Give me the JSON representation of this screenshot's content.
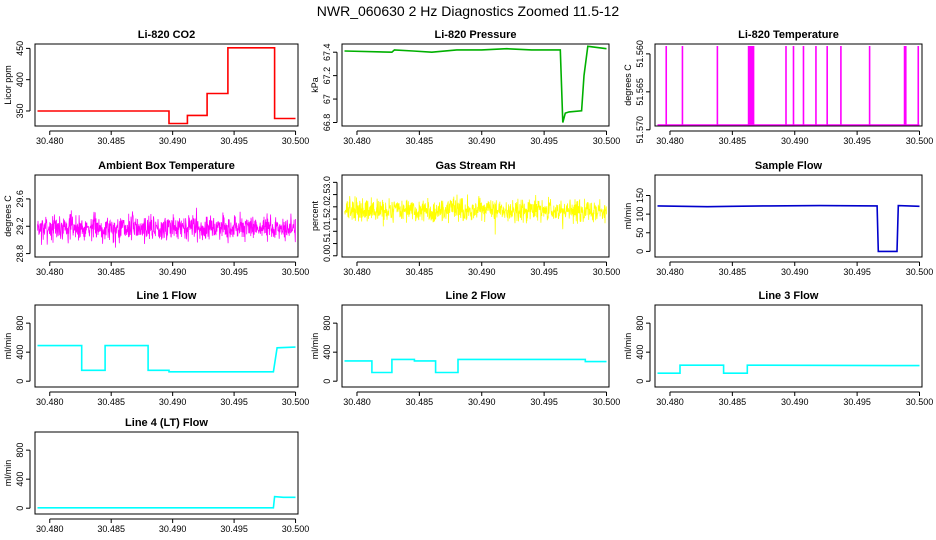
{
  "figure": {
    "title": "NWR_060630  2 Hz Diagnostics Zoomed 11.5-12"
  },
  "chart_data": [
    {
      "type": "line",
      "title": "Li-820 CO2",
      "ylabel": "Licor ppm",
      "color": "#ff0000",
      "xlim": [
        30.4788,
        30.5002
      ],
      "ylim": [
        326,
        457
      ],
      "yticks": [
        350,
        400,
        450
      ],
      "xticks": [
        "30.480",
        "30.485",
        "30.490",
        "30.495",
        "30.500"
      ],
      "series": [
        {
          "x": [
            30.479,
            30.4897,
            30.4897,
            30.4912,
            30.4912,
            30.4928,
            30.4928,
            30.4945,
            30.4945,
            30.4983,
            30.4983,
            30.5
          ],
          "y": [
            350,
            350,
            330,
            330,
            343,
            343,
            378,
            378,
            451,
            451,
            338,
            338
          ]
        }
      ]
    },
    {
      "type": "line",
      "title": "Li-820 Pressure",
      "ylabel": "kPa",
      "color": "#00b000",
      "xlim": [
        30.4788,
        30.5002
      ],
      "ylim": [
        66.77,
        67.47
      ],
      "yticks": [
        66.8,
        67.0,
        67.2,
        67.4
      ],
      "xticks": [
        "30.480",
        "30.485",
        "30.490",
        "30.495",
        "30.500"
      ],
      "series": [
        {
          "x": [
            30.479,
            30.4828,
            30.483,
            30.4845,
            30.486,
            30.488,
            30.49,
            30.492,
            30.494,
            30.4963,
            30.4965,
            30.4967,
            30.497,
            30.498,
            30.4982,
            30.4985,
            30.5
          ],
          "y": [
            67.41,
            67.4,
            67.42,
            67.41,
            67.4,
            67.42,
            67.42,
            67.43,
            67.42,
            67.42,
            66.8,
            66.88,
            66.89,
            66.9,
            67.2,
            67.45,
            67.43
          ]
        }
      ]
    },
    {
      "type": "line",
      "title": "Li-820 Temperature",
      "ylabel": "degrees C",
      "color": "#ff00ff",
      "xlim": [
        30.4788,
        30.5002
      ],
      "ylim": [
        51.5695,
        51.5587
      ],
      "yticks": [
        51.57,
        51.565,
        51.56
      ],
      "ytick_labels": [
        "51.570",
        "51.565",
        "51.560"
      ],
      "xticks": [
        "30.480",
        "30.485",
        "30.490",
        "30.495",
        "30.500"
      ],
      "baseline": 51.5695,
      "spikes": [
        30.4797,
        30.481,
        30.4838,
        30.4863,
        30.4864,
        30.4865,
        30.4866,
        30.4867,
        30.4893,
        30.4899,
        30.4907,
        30.4917,
        30.4926,
        30.4937,
        30.496,
        30.4988,
        30.4989,
        30.4999
      ]
    },
    {
      "type": "line",
      "title": "Ambient Box Temperature",
      "ylabel": "degrees C",
      "color": "#ff00ff",
      "xlim": [
        30.4788,
        30.5002
      ],
      "ylim": [
        28.75,
        29.95
      ],
      "yticks": [
        28.8,
        29.2,
        29.6
      ],
      "xticks": [
        "30.480",
        "30.485",
        "30.490",
        "30.495",
        "30.500"
      ],
      "noise": {
        "x0": 30.479,
        "x1": 30.5,
        "center": 29.18,
        "amp": 0.28,
        "n": 900,
        "seed": 7
      }
    },
    {
      "type": "line",
      "title": "Gas Stream RH",
      "ylabel": "percent",
      "color": "#ffff00",
      "xlim": [
        30.4788,
        30.5002
      ],
      "ylim": [
        -0.05,
        3.3
      ],
      "yticks": [
        0.0,
        0.5,
        1.0,
        1.5,
        2.0,
        2.5,
        3.0
      ],
      "ytick_labels": [
        "0.0",
        "0.5",
        "1.0",
        "1.5",
        "2.0",
        "2.5",
        "3.0"
      ],
      "xticks": [
        "30.480",
        "30.485",
        "30.490",
        "30.495",
        "30.500"
      ],
      "noise": {
        "x0": 30.479,
        "x1": 30.5,
        "center": 1.85,
        "amp": 0.7,
        "n": 900,
        "seed": 13
      }
    },
    {
      "type": "line",
      "title": "Sample Flow",
      "ylabel": "ml/min",
      "color": "#0000cc",
      "xlim": [
        30.4788,
        30.5002
      ],
      "ylim": [
        -15,
        205
      ],
      "yticks": [
        0,
        50,
        100,
        150
      ],
      "xticks": [
        "30.480",
        "30.485",
        "30.490",
        "30.495",
        "30.500"
      ],
      "series": [
        {
          "x": [
            30.479,
            30.483,
            30.485,
            30.488,
            30.492,
            30.4966,
            30.4967,
            30.4982,
            30.4983,
            30.5
          ],
          "y": [
            122,
            120,
            121,
            122,
            123,
            122,
            0,
            0,
            123,
            121
          ]
        }
      ]
    },
    {
      "type": "line",
      "title": "Line 1 Flow",
      "ylabel": "ml/min",
      "color": "#00ffff",
      "xlim": [
        30.4788,
        30.5002
      ],
      "ylim": [
        -80,
        1050
      ],
      "yticks": [
        0,
        400,
        800
      ],
      "xticks": [
        "30.480",
        "30.485",
        "30.490",
        "30.495",
        "30.500"
      ],
      "series": [
        {
          "x": [
            30.479,
            30.4826,
            30.4826,
            30.4845,
            30.4845,
            30.488,
            30.488,
            30.4897,
            30.4897,
            30.4982,
            30.4985,
            30.5
          ],
          "y": [
            490,
            490,
            150,
            150,
            490,
            490,
            150,
            150,
            130,
            130,
            460,
            470
          ]
        }
      ]
    },
    {
      "type": "line",
      "title": "Line 2 Flow",
      "ylabel": "ml/min",
      "color": "#00ffff",
      "xlim": [
        30.4788,
        30.5002
      ],
      "ylim": [
        -80,
        1050
      ],
      "yticks": [
        0,
        400,
        800
      ],
      "xticks": [
        "30.480",
        "30.485",
        "30.490",
        "30.495",
        "30.500"
      ],
      "series": [
        {
          "x": [
            30.479,
            30.4812,
            30.4812,
            30.4828,
            30.4828,
            30.4846,
            30.4846,
            30.4863,
            30.4863,
            30.4881,
            30.4881,
            30.4983,
            30.4983,
            30.5
          ],
          "y": [
            280,
            280,
            120,
            120,
            300,
            300,
            280,
            280,
            120,
            120,
            300,
            300,
            270,
            270
          ]
        }
      ]
    },
    {
      "type": "line",
      "title": "Line 3 Flow",
      "ylabel": "ml/min",
      "color": "#00ffff",
      "xlim": [
        30.4788,
        30.5002
      ],
      "ylim": [
        -80,
        1050
      ],
      "yticks": [
        0,
        400,
        800
      ],
      "xticks": [
        "30.480",
        "30.485",
        "30.490",
        "30.495",
        "30.500"
      ],
      "series": [
        {
          "x": [
            30.479,
            30.4808,
            30.4808,
            30.4843,
            30.4843,
            30.4862,
            30.4862,
            30.5
          ],
          "y": [
            110,
            110,
            220,
            220,
            110,
            110,
            220,
            215
          ]
        }
      ]
    },
    {
      "type": "line",
      "title": "Line 4 (LT) Flow",
      "ylabel": "ml/min",
      "color": "#00ffff",
      "xlim": [
        30.4788,
        30.5002
      ],
      "ylim": [
        -80,
        1050
      ],
      "yticks": [
        0,
        400,
        800
      ],
      "xticks": [
        "30.480",
        "30.485",
        "30.490",
        "30.495",
        "30.500"
      ],
      "series": [
        {
          "x": [
            30.479,
            30.4982,
            30.4983,
            30.499,
            30.5
          ],
          "y": [
            5,
            5,
            160,
            150,
            150
          ]
        }
      ]
    }
  ]
}
